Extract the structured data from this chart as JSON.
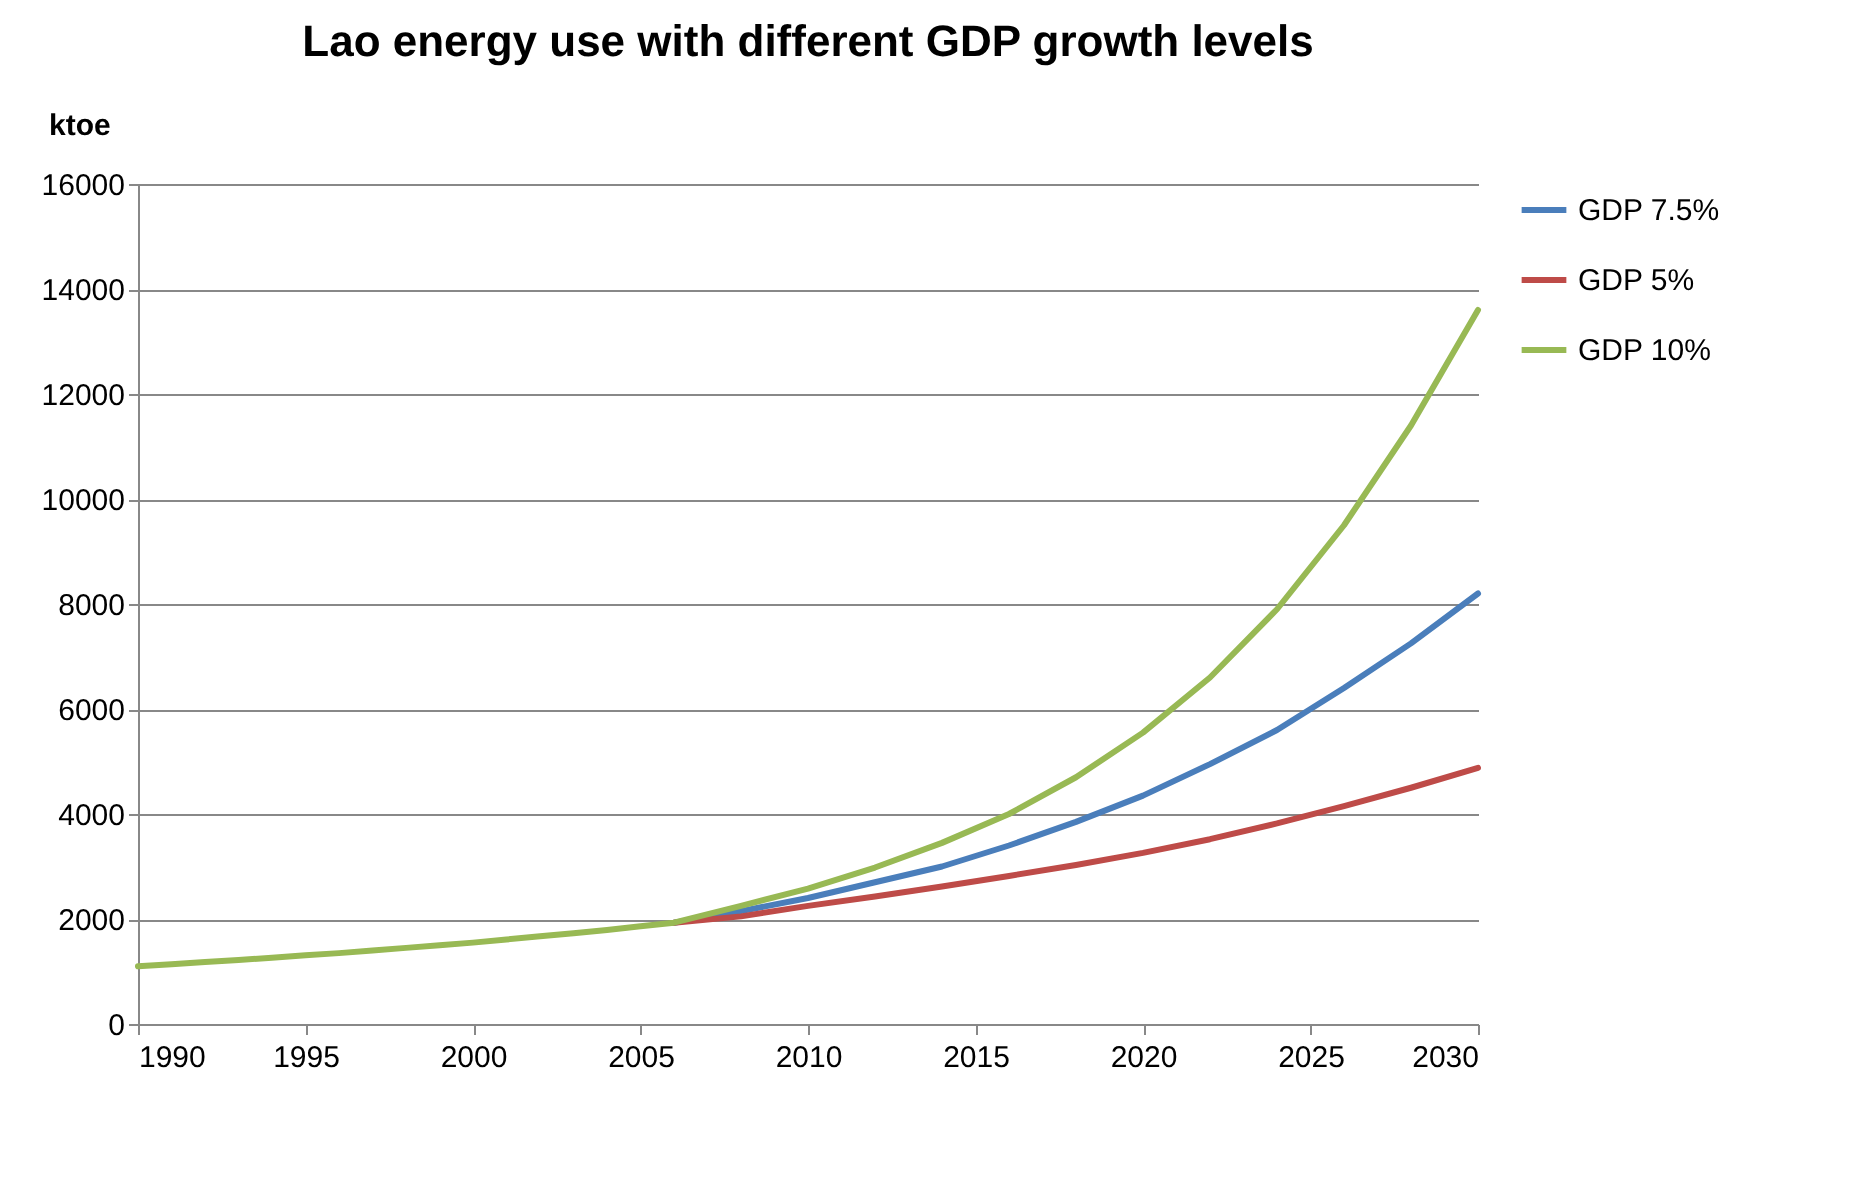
{
  "chart_data": {
    "type": "line",
    "title": "Lao energy use with different GDP growth levels",
    "ylabel": "ktoe",
    "series": [
      {
        "name": "GDP 7.5%",
        "color": "#4a7ebb",
        "x": [
          2006,
          2008,
          2010,
          2012,
          2014,
          2016,
          2018,
          2020,
          2022,
          2024,
          2026,
          2028,
          2030
        ],
        "values": [
          1930,
          2150,
          2400,
          2700,
          3000,
          3400,
          3850,
          4350,
          4950,
          5600,
          6400,
          7250,
          8200
        ]
      },
      {
        "name": "GDP 5%",
        "color": "#be4b48",
        "x": [
          2006,
          2008,
          2010,
          2012,
          2014,
          2016,
          2018,
          2020,
          2022,
          2024,
          2026,
          2028,
          2030
        ],
        "values": [
          1930,
          2050,
          2250,
          2430,
          2620,
          2820,
          3030,
          3260,
          3520,
          3820,
          4150,
          4500,
          4880
        ]
      },
      {
        "name": "GDP 10%",
        "color": "#98b954",
        "x": [
          1990,
          1991,
          1992,
          1993,
          1994,
          1995,
          1996,
          1997,
          1998,
          1999,
          2000,
          2001,
          2002,
          2003,
          2004,
          2005,
          2006,
          2008,
          2010,
          2012,
          2014,
          2016,
          2018,
          2020,
          2022,
          2024,
          2026,
          2028,
          2030
        ],
        "values": [
          1100,
          1140,
          1180,
          1220,
          1260,
          1310,
          1350,
          1400,
          1450,
          1500,
          1550,
          1610,
          1670,
          1730,
          1790,
          1860,
          1930,
          2250,
          2580,
          2980,
          3450,
          4000,
          4700,
          5550,
          6600,
          7900,
          9500,
          11400,
          13600
        ]
      }
    ],
    "xlim": [
      1990,
      2030
    ],
    "xticks": [
      1990,
      1995,
      2000,
      2005,
      2010,
      2015,
      2020,
      2025,
      2030
    ],
    "ylim": [
      0,
      16000
    ],
    "yticks": [
      0,
      2000,
      4000,
      6000,
      8000,
      10000,
      12000,
      14000,
      16000
    ],
    "grid": "y",
    "legend": "right",
    "marker": "none",
    "line_style": "solid"
  }
}
